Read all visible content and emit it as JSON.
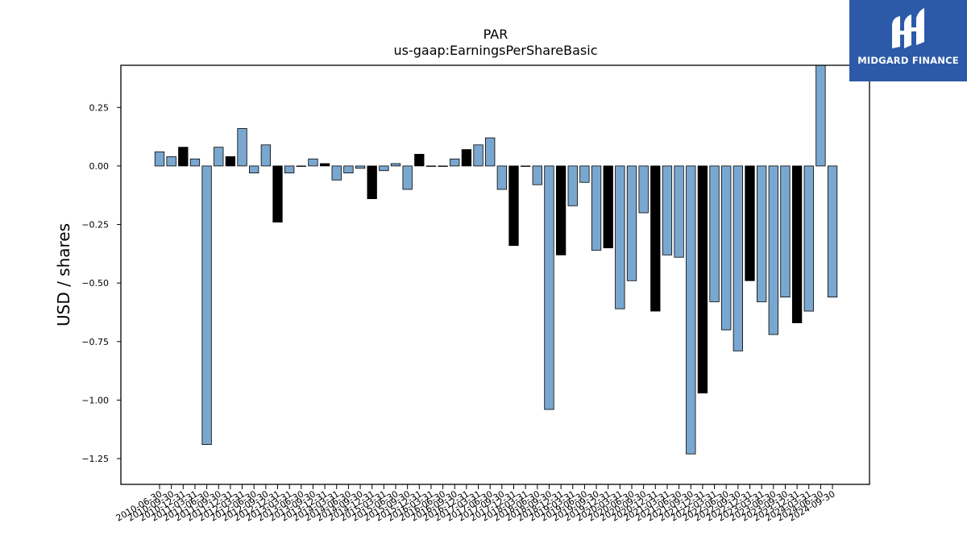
{
  "chart_data": {
    "type": "bar",
    "title": "PAR",
    "subtitle": "us-gaap:EarningsPerShareBasic",
    "ylabel": "USD / shares",
    "xlabel": "",
    "ylim": [
      -1.36,
      0.43
    ],
    "yticks": [
      0.25,
      0.0,
      -0.25,
      -0.5,
      -0.75,
      -1.0,
      -1.25
    ],
    "ytick_labels": [
      "0.25",
      "0.00",
      "−0.25",
      "−0.50",
      "−0.75",
      "−1.00",
      "−1.25"
    ],
    "grid": false,
    "colors": {
      "blue": "#7aa7cf",
      "black": "#000000"
    },
    "categories": [
      "2010-06-30",
      "2010-09-30",
      "2010-12-31",
      "2011-03-31",
      "2011-06-30",
      "2011-09-30",
      "2011-12-31",
      "2012-03-31",
      "2012-06-30",
      "2012-09-30",
      "2012-12-31",
      "2013-03-31",
      "2013-06-30",
      "2013-09-30",
      "2013-12-31",
      "2014-03-31",
      "2014-06-30",
      "2014-09-30",
      "2014-12-31",
      "2015-03-31",
      "2015-06-30",
      "2015-09-30",
      "2015-12-31",
      "2016-03-31",
      "2016-06-30",
      "2016-09-30",
      "2016-12-31",
      "2017-03-31",
      "2017-06-30",
      "2017-09-30",
      "2017-12-31",
      "2018-03-31",
      "2018-06-30",
      "2018-09-30",
      "2018-12-31",
      "2019-03-31",
      "2019-06-30",
      "2019-09-30",
      "2019-12-31",
      "2020-03-31",
      "2020-06-30",
      "2020-09-30",
      "2020-12-31",
      "2021-03-31",
      "2021-06-30",
      "2021-09-30",
      "2021-12-31",
      "2022-03-31",
      "2022-06-30",
      "2022-09-30",
      "2022-12-31",
      "2023-03-31",
      "2023-06-30",
      "2023-09-30",
      "2023-12-31",
      "2024-03-31",
      "2024-06-30",
      "2024-09-30"
    ],
    "values": [
      0.06,
      0.04,
      0.08,
      0.03,
      -1.19,
      0.08,
      0.04,
      0.16,
      -0.03,
      0.09,
      -0.24,
      -0.03,
      0.0,
      0.03,
      0.01,
      -0.06,
      -0.03,
      -0.01,
      -0.14,
      -0.02,
      0.01,
      -0.1,
      0.05,
      0.0,
      0.0,
      0.03,
      0.07,
      0.09,
      0.12,
      -0.1,
      -0.34,
      0.0,
      -0.08,
      -1.04,
      -0.38,
      -0.17,
      -0.07,
      -0.36,
      -0.35,
      -0.61,
      -0.49,
      -0.2,
      -0.62,
      -0.38,
      -0.39,
      -1.23,
      -0.97,
      -0.58,
      -0.7,
      -0.79,
      -0.49,
      -0.58,
      -0.72,
      -0.56,
      -0.67,
      -0.62,
      0.44,
      -0.56
    ],
    "bar_colors": [
      "blue",
      "blue",
      "black",
      "blue",
      "blue",
      "blue",
      "black",
      "blue",
      "blue",
      "blue",
      "black",
      "blue",
      "blue",
      "blue",
      "black",
      "blue",
      "blue",
      "blue",
      "black",
      "blue",
      "blue",
      "blue",
      "black",
      "blue",
      "blue",
      "blue",
      "black",
      "blue",
      "blue",
      "blue",
      "black",
      "blue",
      "blue",
      "blue",
      "black",
      "blue",
      "blue",
      "blue",
      "black",
      "blue",
      "blue",
      "blue",
      "black",
      "blue",
      "blue",
      "blue",
      "black",
      "blue",
      "blue",
      "blue",
      "black",
      "blue",
      "blue",
      "blue",
      "black",
      "blue",
      "blue",
      "blue"
    ]
  },
  "logo": {
    "text": "MIDGARD FINANCE"
  }
}
